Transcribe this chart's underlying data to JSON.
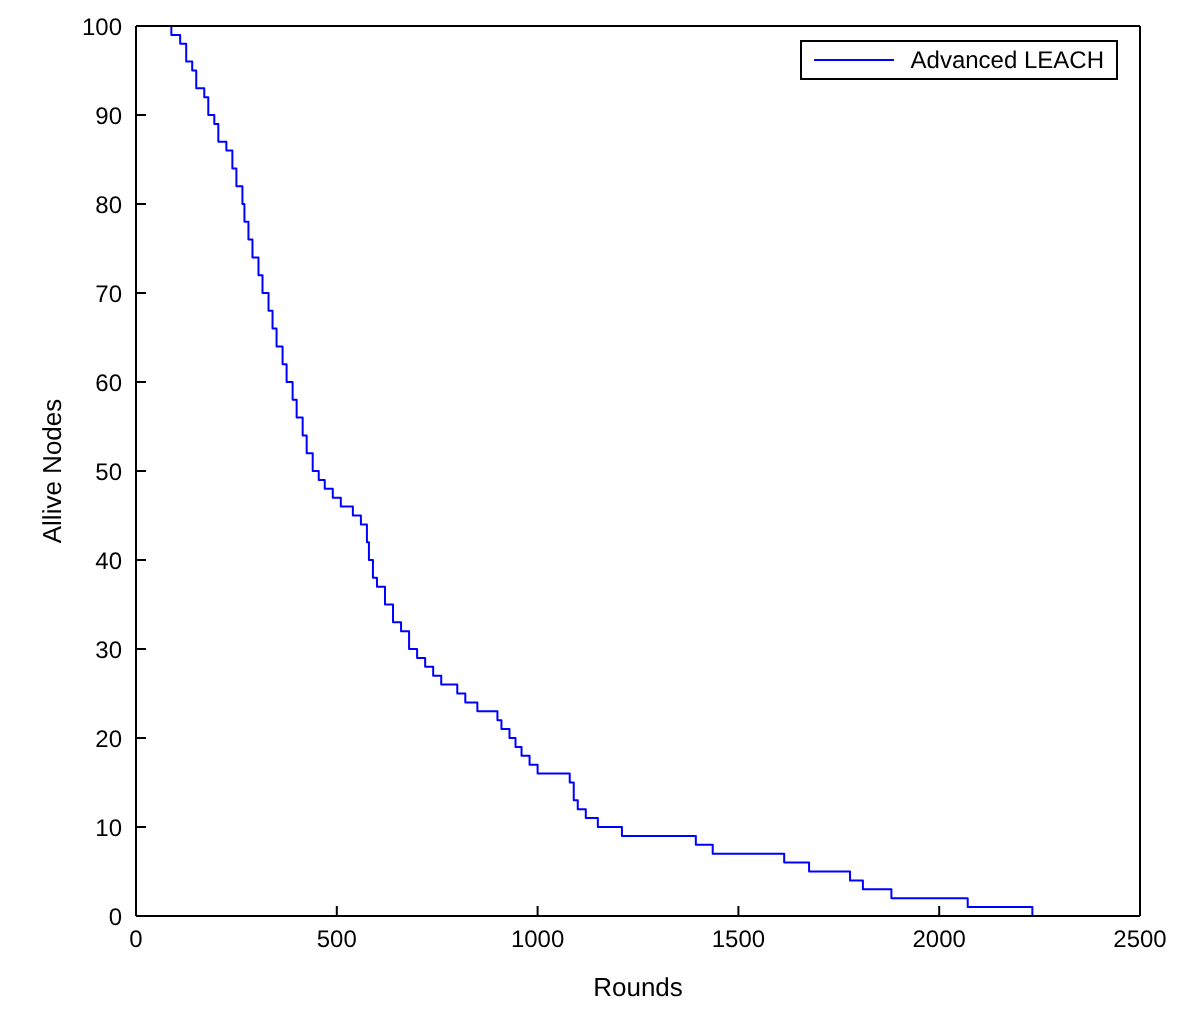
{
  "chart_data": {
    "type": "step",
    "xlabel": "Rounds",
    "ylabel": "Allive Nodes",
    "xlim": [
      0,
      2500
    ],
    "xticks": [
      0,
      500,
      1000,
      1500,
      2000,
      2500
    ],
    "ylim": [
      0,
      100
    ],
    "yticks": [
      0,
      10,
      20,
      30,
      40,
      50,
      60,
      70,
      80,
      90,
      100
    ],
    "legend": "top right",
    "marker": "none",
    "line_style": "solid",
    "x": [
      0,
      88,
      110,
      125,
      140,
      150,
      170,
      180,
      195,
      205,
      225,
      240,
      250,
      265,
      270,
      280,
      290,
      305,
      315,
      330,
      340,
      350,
      365,
      375,
      390,
      400,
      415,
      425,
      440,
      455,
      470,
      490,
      510,
      540,
      560,
      575,
      580,
      590,
      600,
      620,
      640,
      660,
      680,
      700,
      720,
      740,
      760,
      800,
      820,
      850,
      900,
      910,
      930,
      945,
      960,
      980,
      1000,
      1080,
      1090,
      1100,
      1120,
      1150,
      1210,
      1394,
      1436,
      1614,
      1676,
      1778,
      1810,
      1881,
      2071,
      2232,
      2500
    ],
    "series": [
      {
        "name": "Advanced LEACH",
        "color": "#0000ff",
        "values": [
          100,
          99,
          98,
          96,
          95,
          93,
          92,
          90,
          89,
          87,
          86,
          84,
          82,
          80,
          78,
          76,
          74,
          72,
          70,
          68,
          66,
          64,
          62,
          60,
          58,
          56,
          54,
          52,
          50,
          49,
          48,
          47,
          46,
          45,
          44,
          42,
          40,
          38,
          37,
          35,
          33,
          32,
          30,
          29,
          28,
          27,
          26,
          25,
          24,
          23,
          22,
          21,
          20,
          19,
          18,
          17,
          16,
          15,
          13,
          12,
          11,
          10,
          9,
          8,
          7,
          6,
          5,
          4,
          3,
          2,
          1,
          0,
          0
        ]
      }
    ]
  }
}
